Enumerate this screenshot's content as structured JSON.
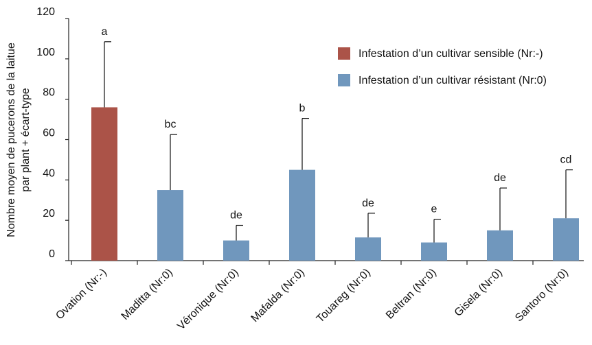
{
  "chart_data": {
    "type": "bar",
    "title": "",
    "ylabel": [
      "Nombre moyen de pucerons de la laitue",
      "par plant + écart-type"
    ],
    "xlabel": "",
    "ylim": [
      0,
      120
    ],
    "yticks": [
      0,
      20,
      40,
      60,
      80,
      100,
      120
    ],
    "categories": [
      "Ovation (Nr:-)",
      "Maditta (Nr:0)",
      "Véronique (Nr:0)",
      "Mafalda (Nr:0)",
      "Touareg (Nr:0)",
      "Beltran (Nr:0)",
      "Gisela (Nr:0)",
      "Santoro (Nr:0)"
    ],
    "values": [
      76,
      35,
      10,
      45,
      11.5,
      9,
      15,
      21
    ],
    "error_upper": [
      108.5,
      62.5,
      17.5,
      70.5,
      23.5,
      20.5,
      36,
      45
    ],
    "significance": [
      "a",
      "bc",
      "de",
      "b",
      "de",
      "e",
      "de",
      "cd"
    ],
    "series_group": [
      "sensible",
      "resistant",
      "resistant",
      "resistant",
      "resistant",
      "resistant",
      "resistant",
      "resistant"
    ],
    "legend": [
      {
        "label": "Infestation d’un cultivar sensible (Nr:-)",
        "color": "#ab5348",
        "group": "sensible"
      },
      {
        "label": "Infestation d’un cultivar résistant (Nr:0)",
        "color": "#7097bd",
        "group": "resistant"
      }
    ],
    "legend_position": "top-right",
    "grid": false
  }
}
